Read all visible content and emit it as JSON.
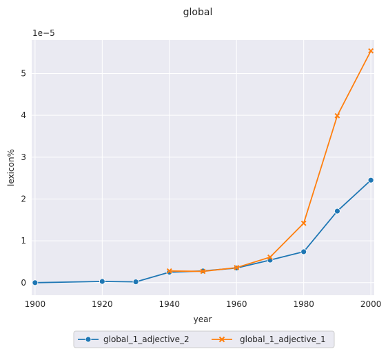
{
  "chart_data": {
    "type": "line",
    "title": "global",
    "xlabel": "year",
    "ylabel": "lexicon%",
    "y_offset_label": "1e−5",
    "xlim": [
      1899,
      2001
    ],
    "ylim": [
      -0.3,
      5.8
    ],
    "x_ticks": [
      1900,
      1920,
      1940,
      1960,
      1980,
      2000
    ],
    "y_ticks": [
      0,
      1,
      2,
      3,
      4,
      5
    ],
    "grid": true,
    "legend_position": "bottom-center",
    "series": [
      {
        "name": "global_1_adjective_2",
        "color": "#1f77b4",
        "marker": "circle",
        "x": [
          1900,
          1920,
          1930,
          1940,
          1950,
          1960,
          1970,
          1980,
          1990,
          2000
        ],
        "y": [
          0.0,
          0.03,
          0.02,
          0.25,
          0.28,
          0.35,
          0.54,
          0.74,
          1.71,
          2.45
        ]
      },
      {
        "name": "global_1_adjective_1",
        "color": "#ff7f0e",
        "marker": "x",
        "x": [
          1940,
          1950,
          1960,
          1970,
          1980,
          1990,
          2000
        ],
        "y": [
          0.28,
          0.27,
          0.36,
          0.61,
          1.42,
          3.99,
          5.54
        ]
      }
    ]
  }
}
